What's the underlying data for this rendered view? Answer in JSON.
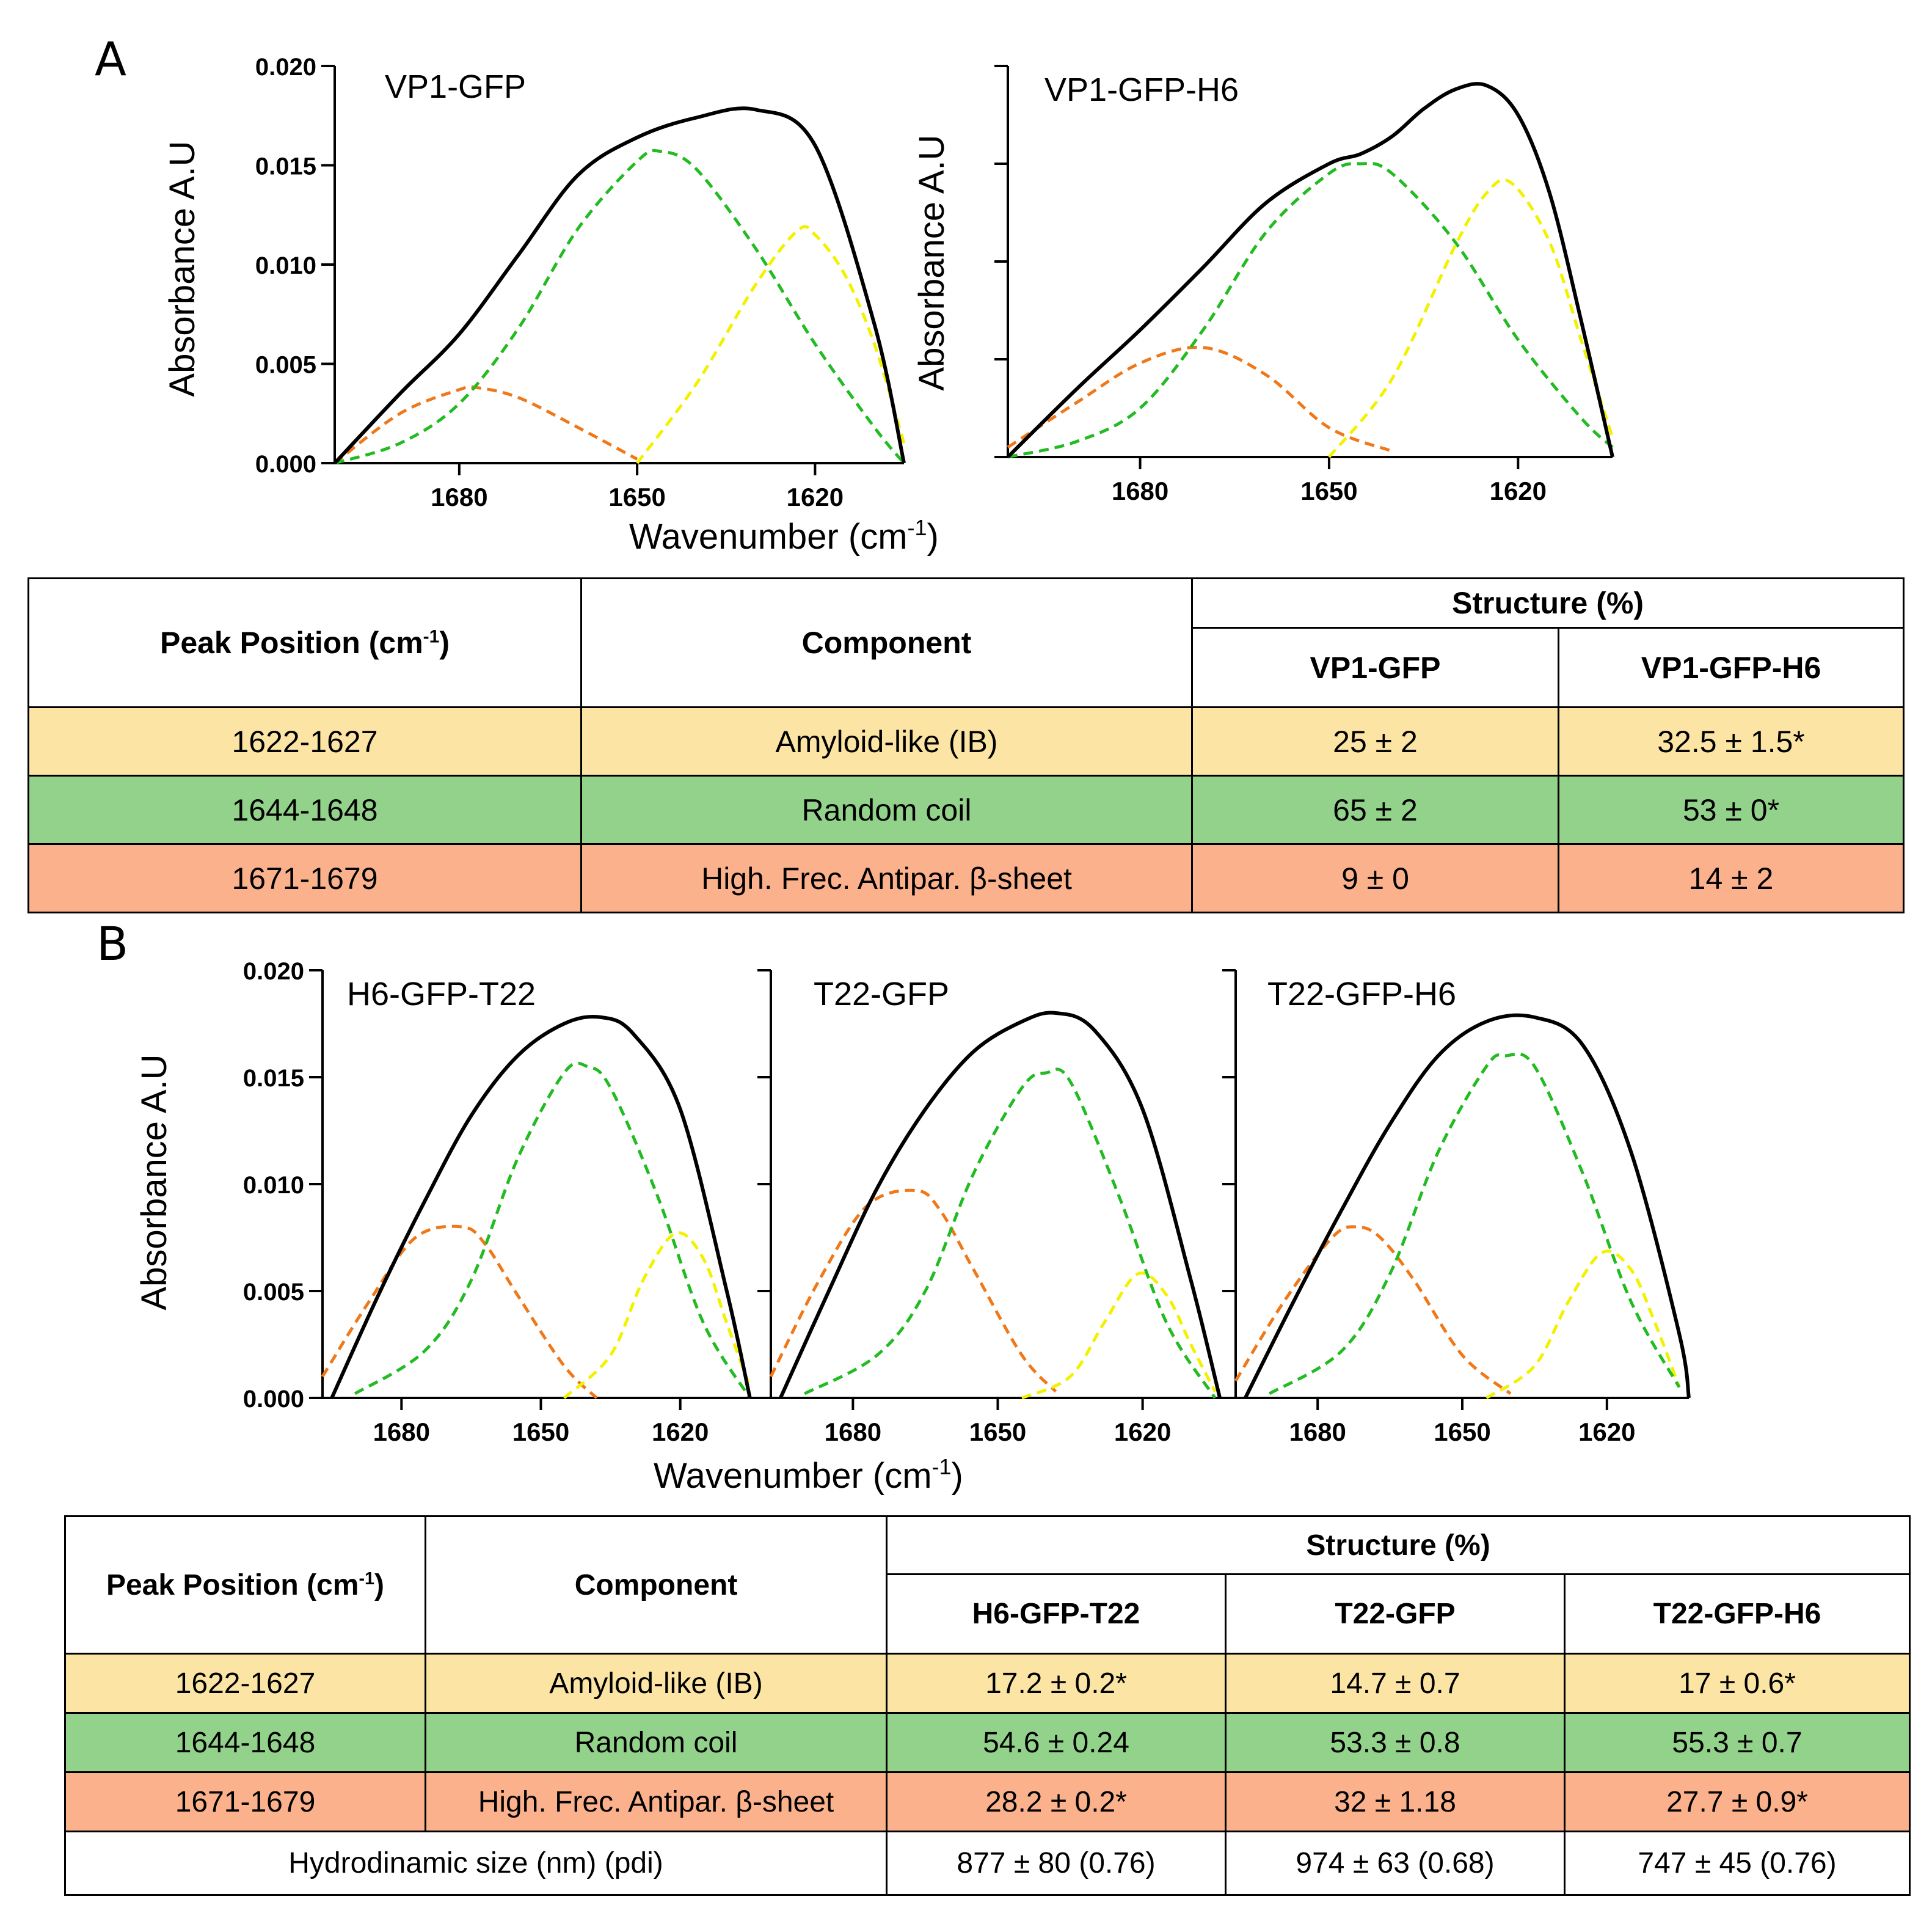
{
  "panel_a": {
    "letter": "A"
  },
  "panel_b": {
    "letter": "B"
  },
  "chart_data": [
    {
      "type": "line",
      "panel": "A",
      "title": "VP1-GFP",
      "ylabel": "Absorbance A.U",
      "xlabel": "Wavenumber (cm-1)",
      "xlim": [
        1701,
        1605
      ],
      "ylim": [
        0,
        0.02
      ],
      "xticks": [
        "1680",
        "1650",
        "1620"
      ],
      "yticks": [
        "0.000",
        "0.005",
        "0.010",
        "0.015",
        "0.020"
      ],
      "series": [
        {
          "name": "total",
          "x": [
            1701,
            1690,
            1680,
            1670,
            1660,
            1650,
            1640,
            1630,
            1620,
            1610,
            1605
          ],
          "y": [
            0,
            0.0035,
            0.0065,
            0.0105,
            0.0145,
            0.0164,
            0.0174,
            0.0178,
            0.016,
            0.007,
            0
          ]
        },
        {
          "name": "random coil",
          "x": [
            1701,
            1690,
            1680,
            1670,
            1660,
            1650,
            1646,
            1640,
            1630,
            1620,
            1610,
            1605
          ],
          "y": [
            0,
            0.001,
            0.003,
            0.0068,
            0.0118,
            0.0152,
            0.0157,
            0.0148,
            0.0108,
            0.006,
            0.0018,
            0
          ]
        },
        {
          "name": "amyloid-like",
          "x": [
            1650,
            1640,
            1630,
            1623,
            1620,
            1615,
            1610,
            1605
          ],
          "y": [
            0,
            0.004,
            0.009,
            0.0117,
            0.0115,
            0.0095,
            0.006,
            0.001
          ]
        },
        {
          "name": "antiparallel beta-sheet",
          "x": [
            1701,
            1690,
            1680,
            1677,
            1670,
            1660,
            1650
          ],
          "y": [
            0,
            0.0025,
            0.0037,
            0.0038,
            0.0033,
            0.0018,
            0.0002
          ]
        }
      ]
    },
    {
      "type": "line",
      "panel": "A",
      "title": "VP1-GFP-H6",
      "ylabel": "Absorbance A.U",
      "xlabel": "Wavenumber (cm-1)",
      "xlim": [
        1701,
        1605
      ],
      "ylim": [
        0,
        0.02
      ],
      "xticks": [
        "1680",
        "1650",
        "1620"
      ],
      "series": [
        {
          "name": "total",
          "x": [
            1701,
            1690,
            1680,
            1670,
            1660,
            1650,
            1645,
            1640,
            1635,
            1630,
            1625,
            1620,
            1615,
            1610,
            1605
          ],
          "y": [
            0,
            0.0035,
            0.0065,
            0.0097,
            0.013,
            0.015,
            0.0155,
            0.0164,
            0.0178,
            0.0188,
            0.019,
            0.0175,
            0.0135,
            0.007,
            0
          ]
        },
        {
          "name": "random coil",
          "x": [
            1701,
            1690,
            1680,
            1670,
            1660,
            1650,
            1645,
            1640,
            1630,
            1620,
            1610,
            1605
          ],
          "y": [
            0,
            0.0008,
            0.0025,
            0.0065,
            0.0115,
            0.0145,
            0.015,
            0.0145,
            0.011,
            0.006,
            0.002,
            0.0005
          ]
        },
        {
          "name": "amyloid-like",
          "x": [
            1650,
            1640,
            1630,
            1625,
            1621,
            1615,
            1610,
            1605
          ],
          "y": [
            0,
            0.004,
            0.0108,
            0.0135,
            0.014,
            0.011,
            0.006,
            0.001
          ]
        },
        {
          "name": "antiparallel beta-sheet",
          "x": [
            1701,
            1690,
            1680,
            1670,
            1660,
            1650,
            1640
          ],
          "y": [
            0.0005,
            0.0028,
            0.0048,
            0.0056,
            0.0042,
            0.0015,
            0.0003
          ]
        }
      ]
    },
    {
      "type": "line",
      "panel": "B",
      "title": "H6-GFP-T22",
      "ylabel": "Absorbance A.U",
      "xlabel": "Wavenumber (cm-1)",
      "xlim": [
        1697,
        1603
      ],
      "ylim": [
        0,
        0.02
      ],
      "xticks": [
        "1680",
        "1650",
        "1620"
      ],
      "yticks": [
        "0.000",
        "0.005",
        "0.010",
        "0.015",
        "0.020"
      ],
      "series": [
        {
          "name": "total",
          "x": [
            1695,
            1685,
            1675,
            1665,
            1655,
            1645,
            1637,
            1630,
            1620,
            1610,
            1605
          ],
          "y": [
            0,
            0.0048,
            0.0092,
            0.0132,
            0.016,
            0.0175,
            0.0178,
            0.017,
            0.0135,
            0.005,
            0
          ]
        },
        {
          "name": "random coil",
          "x": [
            1690,
            1675,
            1665,
            1655,
            1645,
            1640,
            1635,
            1625,
            1615,
            1605
          ],
          "y": [
            0.0002,
            0.0022,
            0.0055,
            0.0112,
            0.0152,
            0.0155,
            0.0145,
            0.0095,
            0.0035,
            0
          ]
        },
        {
          "name": "amyloid-like",
          "x": [
            1645,
            1635,
            1628,
            1621,
            1615,
            1610,
            1605
          ],
          "y": [
            0,
            0.002,
            0.0055,
            0.0077,
            0.0065,
            0.0035,
            0.0005
          ]
        },
        {
          "name": "antiparallel beta-sheet",
          "x": [
            1697,
            1687,
            1677,
            1667,
            1662,
            1655,
            1645,
            1638
          ],
          "y": [
            0.001,
            0.0045,
            0.0075,
            0.008,
            0.0072,
            0.0048,
            0.0015,
            0
          ]
        }
      ]
    },
    {
      "type": "line",
      "panel": "B",
      "title": "T22-GFP",
      "xlabel": "Wavenumber (cm-1)",
      "xlim": [
        1697,
        1603
      ],
      "ylim": [
        0,
        0.02
      ],
      "xticks": [
        "1680",
        "1650",
        "1620"
      ],
      "series": [
        {
          "name": "total",
          "x": [
            1695,
            1685,
            1675,
            1665,
            1655,
            1645,
            1638,
            1630,
            1620,
            1610,
            1604
          ],
          "y": [
            0,
            0.005,
            0.0098,
            0.0135,
            0.0162,
            0.0176,
            0.018,
            0.0172,
            0.0135,
            0.0055,
            0
          ]
        },
        {
          "name": "random coil",
          "x": [
            1690,
            1675,
            1665,
            1655,
            1645,
            1640,
            1635,
            1625,
            1615,
            1605
          ],
          "y": [
            0.0002,
            0.002,
            0.005,
            0.0105,
            0.0145,
            0.0152,
            0.0148,
            0.0095,
            0.0035,
            0
          ]
        },
        {
          "name": "amyloid-like",
          "x": [
            1645,
            1635,
            1628,
            1621,
            1615,
            1610,
            1605
          ],
          "y": [
            0,
            0.001,
            0.0035,
            0.0058,
            0.0048,
            0.0025,
            0.0003
          ]
        },
        {
          "name": "antiparallel beta-sheet",
          "x": [
            1697,
            1687,
            1677,
            1667,
            1662,
            1655,
            1645,
            1638
          ],
          "y": [
            0.001,
            0.0055,
            0.009,
            0.0097,
            0.0088,
            0.006,
            0.002,
            0.0003
          ]
        }
      ]
    },
    {
      "type": "line",
      "panel": "B",
      "title": "T22-GFP-H6",
      "xlabel": "Wavenumber (cm-1)",
      "xlim": [
        1697,
        1603
      ],
      "ylim": [
        0,
        0.02
      ],
      "xticks": [
        "1680",
        "1650",
        "1620"
      ],
      "series": [
        {
          "name": "total",
          "x": [
            1695,
            1685,
            1675,
            1665,
            1655,
            1645,
            1635,
            1625,
            1615,
            1605,
            1603
          ],
          "y": [
            0,
            0.0045,
            0.0088,
            0.0128,
            0.016,
            0.0176,
            0.0178,
            0.0165,
            0.0115,
            0.003,
            0
          ]
        },
        {
          "name": "random coil",
          "x": [
            1690,
            1675,
            1665,
            1655,
            1645,
            1641,
            1635,
            1625,
            1615,
            1605
          ],
          "y": [
            0.0002,
            0.0022,
            0.0058,
            0.0115,
            0.0155,
            0.016,
            0.0155,
            0.0105,
            0.0045,
            0.0005
          ]
        },
        {
          "name": "amyloid-like",
          "x": [
            1645,
            1635,
            1628,
            1621,
            1615,
            1610,
            1605
          ],
          "y": [
            0,
            0.0015,
            0.0045,
            0.0068,
            0.006,
            0.0035,
            0.0005
          ]
        },
        {
          "name": "antiparallel beta-sheet",
          "x": [
            1697,
            1687,
            1677,
            1672,
            1667,
            1660,
            1650,
            1640
          ],
          "y": [
            0.0008,
            0.0045,
            0.0075,
            0.008,
            0.0075,
            0.0055,
            0.002,
            0.0002
          ]
        }
      ]
    }
  ],
  "table_a": {
    "header": {
      "peak": "Peak Position (cm",
      "peak_sup": "-1",
      "peak_close": ")",
      "component": "Component",
      "structure": "Structure (%)",
      "cols": [
        "VP1-GFP",
        "VP1-GFP-H6"
      ]
    },
    "rows": [
      {
        "peak": "1622-1627",
        "component": "Amyloid-like (IB)",
        "values": [
          "25 ± 2",
          "32.5 ± 1.5*"
        ]
      },
      {
        "peak": "1644-1648",
        "component": "Random coil",
        "values": [
          "65 ± 2",
          "53 ± 0*"
        ]
      },
      {
        "peak": "1671-1679",
        "component": "High. Frec. Antipar. β-sheet",
        "values": [
          "9 ± 0",
          "14 ± 2"
        ]
      }
    ]
  },
  "table_b": {
    "header": {
      "peak": "Peak Position (cm",
      "peak_sup": "-1",
      "peak_close": ")",
      "component": "Component",
      "structure": "Structure (%)",
      "cols": [
        "H6-GFP-T22",
        "T22-GFP",
        "T22-GFP-H6"
      ]
    },
    "rows": [
      {
        "peak": "1622-1627",
        "component": "Amyloid-like (IB)",
        "values": [
          "17.2 ± 0.2*",
          "14.7 ± 0.7",
          "17 ± 0.6*"
        ]
      },
      {
        "peak": "1644-1648",
        "component": "Random coil",
        "values": [
          "54.6 ± 0.24",
          "53.3 ± 0.8",
          "55.3 ± 0.7"
        ]
      },
      {
        "peak": "1671-1679",
        "component": "High. Frec. Antipar. β-sheet",
        "values": [
          "28.2 ± 0.2*",
          "32 ± 1.18",
          "27.7 ± 0.9*"
        ]
      }
    ],
    "footer": {
      "label": "Hydrodinamic size (nm) (pdi)",
      "values": [
        "877 ± 80 (0.76)",
        "974 ± 63 (0.68)",
        "747 ± 45 (0.76)"
      ]
    }
  },
  "colors": {
    "total": "#000000",
    "random coil": "#22bb22",
    "amyloid-like": "#f2f200",
    "antiparallel beta-sheet": "#f07818"
  }
}
